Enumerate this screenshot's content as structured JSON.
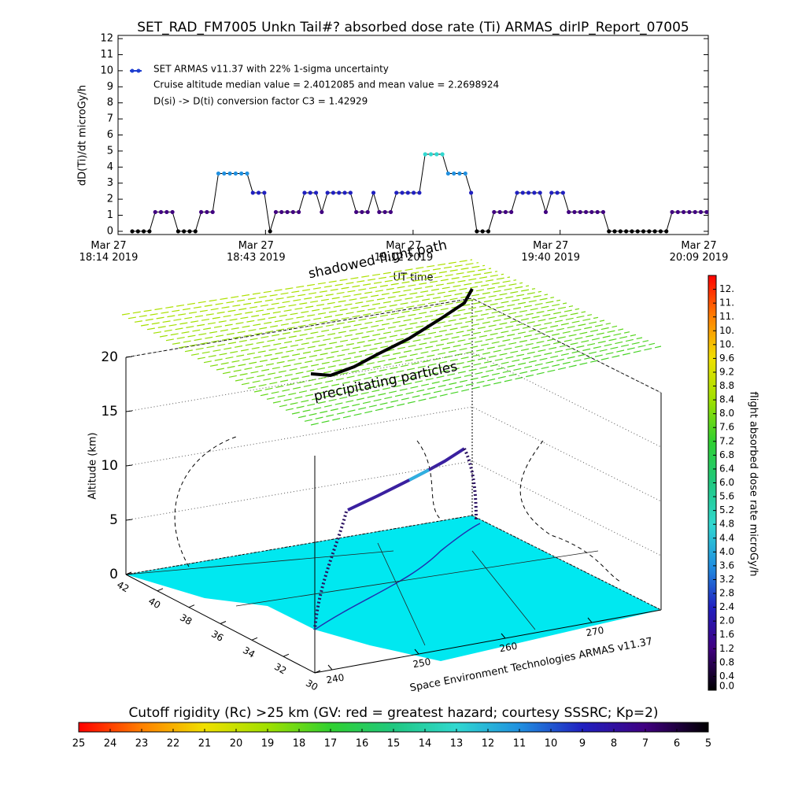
{
  "chart_data": [
    {
      "type": "line",
      "title": "SET_RAD_FM7005  Unkn Tail#? absorbed dose rate (Ti) ARMAS_dirIP_Report_07005",
      "y_label": "dD(Ti)/dt microGy/h",
      "x_label": "UT time",
      "annotations": [
        "Cruise altitude median value = 2.4012085 and mean value = 2.2698924",
        "D(si) -> D(ti) conversion factor C3 = 1.42929"
      ],
      "series": [
        {
          "name": "SET ARMAS v11.37 with 22% 1-sigma uncertainty",
          "color": "#1f3fd0",
          "values": [
            0,
            0,
            0,
            0,
            1.2,
            1.2,
            1.2,
            1.2,
            0,
            0,
            0,
            0,
            1.2,
            1.2,
            1.2,
            3.6,
            3.6,
            3.6,
            3.6,
            3.6,
            3.6,
            2.4,
            2.4,
            2.4,
            0,
            1.2,
            1.2,
            1.2,
            1.2,
            1.2,
            2.4,
            2.4,
            2.4,
            1.2,
            2.4,
            2.4,
            2.4,
            2.4,
            2.4,
            1.2,
            1.2,
            1.2,
            2.4,
            1.2,
            1.2,
            1.2,
            2.4,
            2.4,
            2.4,
            2.4,
            2.4,
            4.8,
            4.8,
            4.8,
            4.8,
            3.6,
            3.6,
            3.6,
            3.6,
            2.4,
            0,
            0,
            0,
            1.2,
            1.2,
            1.2,
            1.2,
            2.4,
            2.4,
            2.4,
            2.4,
            2.4,
            1.2,
            2.4,
            2.4,
            2.4,
            1.2,
            1.2,
            1.2,
            1.2,
            1.2,
            1.2,
            1.2,
            0,
            0,
            0,
            0,
            0,
            0,
            0,
            0,
            0,
            0,
            0,
            1.2,
            1.2,
            1.2,
            1.2,
            1.2,
            1.2,
            1.2
          ]
        }
      ],
      "xlim": [
        -2.47,
        100.3
      ],
      "xticks": [
        {
          "value": -2.47,
          "label": "Mar 27\n18:14 2019"
        },
        {
          "value": 23.2,
          "label": "Mar 27\n18:43 2019"
        },
        {
          "value": 48.9,
          "label": "Mar 27\n19:12 2019"
        },
        {
          "value": 74.5,
          "label": "Mar 27\n19:40 2019"
        },
        {
          "value": 100.3,
          "label": "Mar 27\n20:09 2019"
        }
      ],
      "ylim": [
        -0.2,
        12.2
      ],
      "yticks": [
        0,
        1,
        2,
        3,
        4,
        5,
        6,
        7,
        8,
        9,
        10,
        11,
        12
      ]
    },
    {
      "type": "surface3d",
      "z_label": "Altitude (km)",
      "zlim": [
        0,
        20
      ],
      "zticks": [
        0,
        5,
        10,
        15,
        20
      ],
      "lat_ticks": [
        42,
        40,
        38,
        36,
        34,
        32,
        30
      ],
      "lon_ticks": [
        240,
        250,
        260,
        270
      ],
      "annotations": [
        "shadowed flight path",
        "precipitating particles",
        "Space Environment Technologies ARMAS v11.37"
      ]
    },
    {
      "type": "colorbar",
      "label": "flight absorbed dose rate microGy/h",
      "lim": [
        0,
        12
      ],
      "ticks": [
        {
          "value": 0,
          "label": "0.0"
        },
        0.4,
        0.8,
        1.2,
        1.6,
        {
          "value": 2,
          "label": "2.0"
        },
        2.4,
        2.8,
        3.2,
        3.6,
        {
          "value": 4,
          "label": "4.0"
        },
        4.4,
        4.8,
        5.2,
        5.6,
        {
          "value": 6,
          "label": "6.0"
        },
        6.4,
        6.8,
        7.2,
        7.6,
        {
          "value": 8,
          "label": "8.0"
        },
        8.4,
        8.8,
        9.2,
        9.6,
        {
          "value": 10,
          "label": "10."
        },
        {
          "value": 10.4,
          "label": "10."
        },
        {
          "value": 10.8,
          "label": "11."
        },
        {
          "value": 11.2,
          "label": "11."
        },
        {
          "value": 11.6,
          "label": "12."
        }
      ],
      "colors": [
        "#000000",
        "#400080",
        "#2020c0",
        "#2090e0",
        "#30d8d0",
        "#20c880",
        "#30d030",
        "#a0e000",
        "#f0e000",
        "#ff8000",
        "#ff0000"
      ]
    },
    {
      "type": "colorbar",
      "label": "Cutoff rigidity (Rc) >25 km (GV: red = greatest hazard; courtesy SSSRC; Kp=2)",
      "lim": [
        25,
        5
      ],
      "ticks": [
        25,
        24,
        23,
        22,
        21,
        20,
        19,
        18,
        17,
        16,
        15,
        14,
        13,
        12,
        11,
        10,
        9,
        8,
        7,
        6,
        5
      ],
      "colors": [
        "#000000",
        "#400080",
        "#2020c0",
        "#2090e0",
        "#30d8d0",
        "#20c880",
        "#30d030",
        "#a0e000",
        "#f0e000",
        "#ff8000",
        "#ff0000"
      ]
    }
  ]
}
